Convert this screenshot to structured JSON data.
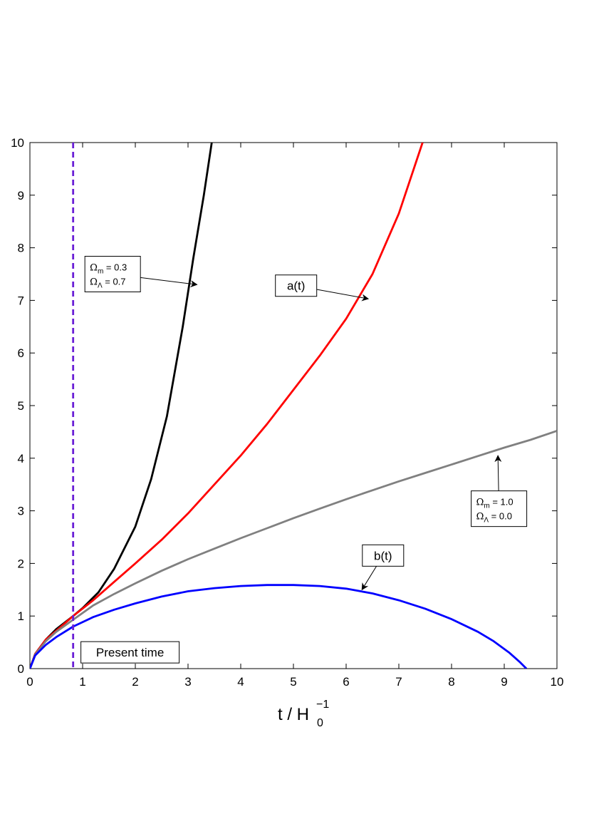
{
  "chart_data": {
    "type": "line",
    "title": "",
    "xlabel": {
      "base": "t / H",
      "subscript": "0",
      "superscript": "−1"
    },
    "ylabel": "",
    "xlim": [
      0,
      10
    ],
    "ylim": [
      0,
      10
    ],
    "x_ticks": [
      "0",
      "1",
      "2",
      "3",
      "4",
      "5",
      "6",
      "7",
      "8",
      "9",
      "10"
    ],
    "y_ticks": [
      "0",
      "1",
      "2",
      "3",
      "4",
      "5",
      "6",
      "7",
      "8",
      "9",
      "10"
    ],
    "grid": false,
    "legend": "none",
    "present_time": {
      "x": 0.82,
      "color": "#6a1fd6",
      "style": "dashed"
    },
    "series": [
      {
        "color": "#000000",
        "x": [
          0,
          0.1,
          0.3,
          0.5,
          0.82,
          1.0,
          1.3,
          1.6,
          2.0,
          2.3,
          2.6,
          2.9,
          3.1,
          3.3,
          3.45
        ],
        "y": [
          0,
          0.28,
          0.55,
          0.75,
          1.0,
          1.15,
          1.45,
          1.9,
          2.7,
          3.6,
          4.8,
          6.5,
          7.8,
          9.0,
          10.0
        ]
      },
      {
        "color": "#ff0000",
        "x": [
          0,
          0.1,
          0.3,
          0.5,
          0.82,
          1.2,
          1.6,
          2.0,
          2.5,
          3.0,
          3.5,
          4.0,
          4.5,
          5.0,
          5.5,
          6.0,
          6.5,
          7.0,
          7.45
        ],
        "y": [
          0,
          0.28,
          0.55,
          0.72,
          1.0,
          1.3,
          1.65,
          2.0,
          2.45,
          2.95,
          3.5,
          4.05,
          4.65,
          5.3,
          5.95,
          6.65,
          7.5,
          8.65,
          10.0
        ]
      },
      {
        "color": "#808080",
        "x": [
          0,
          0.1,
          0.3,
          0.5,
          0.82,
          1.2,
          1.6,
          2.0,
          2.5,
          3.0,
          3.5,
          4.0,
          4.5,
          5.0,
          5.5,
          6.0,
          6.5,
          7.0,
          7.5,
          8.0,
          8.5,
          9.0,
          9.5,
          10.0
        ],
        "y": [
          0,
          0.27,
          0.52,
          0.7,
          0.93,
          1.2,
          1.42,
          1.62,
          1.86,
          2.08,
          2.28,
          2.48,
          2.67,
          2.86,
          3.04,
          3.22,
          3.39,
          3.56,
          3.72,
          3.88,
          4.04,
          4.2,
          4.35,
          4.52
        ]
      },
      {
        "color": "#0000ff",
        "x": [
          0,
          0.1,
          0.3,
          0.5,
          0.82,
          1.2,
          1.6,
          2.0,
          2.5,
          3.0,
          3.5,
          4.0,
          4.5,
          5.0,
          5.5,
          6.0,
          6.5,
          7.0,
          7.5,
          8.0,
          8.5,
          8.8,
          9.1,
          9.3,
          9.42
        ],
        "y": [
          0,
          0.25,
          0.45,
          0.6,
          0.8,
          0.98,
          1.12,
          1.24,
          1.37,
          1.47,
          1.53,
          1.57,
          1.59,
          1.59,
          1.57,
          1.52,
          1.43,
          1.3,
          1.14,
          0.94,
          0.7,
          0.52,
          0.3,
          0.12,
          0.0
        ]
      }
    ],
    "annotations": [
      {
        "kind": "omega",
        "om": "0.3",
        "ol": "0.7",
        "box": [
          1.57,
          7.5
        ],
        "target": [
          3.17,
          7.3
        ]
      },
      {
        "kind": "text",
        "text": "a(t)",
        "box": [
          5.05,
          7.28
        ],
        "target": [
          6.42,
          7.03
        ]
      },
      {
        "kind": "omega",
        "om": "1.0",
        "ol": "0.0",
        "box": [
          8.9,
          3.04
        ],
        "target": [
          8.88,
          4.05
        ]
      },
      {
        "kind": "text",
        "text": "b(t)",
        "box": [
          6.7,
          2.15
        ],
        "target": [
          6.3,
          1.5
        ]
      },
      {
        "kind": "text",
        "text": "Present time",
        "box": [
          1.9,
          0.31
        ],
        "target": null
      }
    ],
    "annotation_labels": {
      "omega_m": "Ω",
      "m_sub": "m",
      "omega_l": "Ω",
      "l_sub": "Λ",
      "equals": " = "
    }
  }
}
